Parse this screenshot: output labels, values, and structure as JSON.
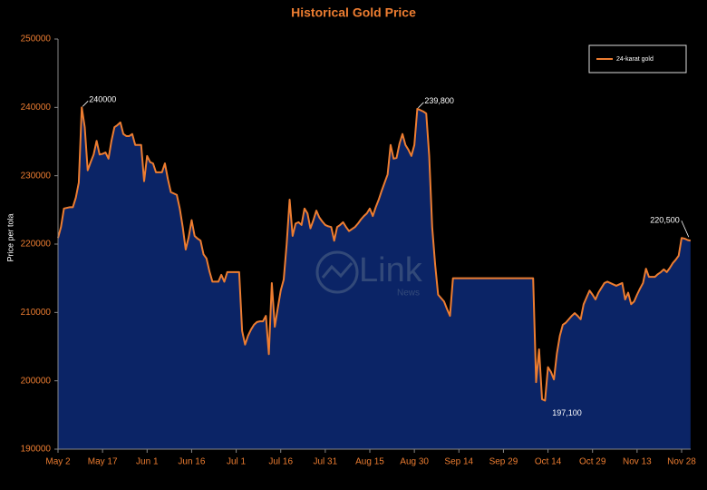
{
  "chart_data": {
    "type": "area",
    "title": "Historical Gold Price",
    "y_label": "Price per tola",
    "watermark": {
      "text": "Link",
      "subtext": "News"
    },
    "background": "#000000",
    "legend": "upper right",
    "categories": [
      "May 2",
      null,
      null,
      null,
      null,
      null,
      null,
      null,
      null,
      null,
      null,
      null,
      null,
      null,
      null,
      "May 17",
      null,
      null,
      null,
      null,
      null,
      null,
      null,
      null,
      null,
      null,
      null,
      null,
      null,
      null,
      "Jun 1",
      null,
      null,
      null,
      null,
      null,
      null,
      null,
      null,
      null,
      null,
      null,
      null,
      null,
      null,
      "Jun 16",
      null,
      null,
      null,
      null,
      null,
      null,
      null,
      null,
      null,
      null,
      null,
      null,
      null,
      null,
      "Jul 1",
      null,
      null,
      null,
      null,
      null,
      null,
      null,
      null,
      null,
      null,
      null,
      null,
      null,
      null,
      "Jul 16",
      null,
      null,
      null,
      null,
      null,
      null,
      null,
      null,
      null,
      null,
      null,
      null,
      null,
      null,
      "Jul 31",
      null,
      null,
      null,
      null,
      null,
      null,
      null,
      null,
      null,
      null,
      null,
      null,
      null,
      null,
      "Aug 15",
      null,
      null,
      null,
      null,
      null,
      null,
      null,
      null,
      null,
      null,
      null,
      null,
      null,
      null,
      "Aug 30",
      null,
      null,
      null,
      null,
      null,
      null,
      null,
      null,
      null,
      null,
      null,
      null,
      null,
      null,
      "Sep 14",
      null,
      null,
      null,
      null,
      null,
      null,
      null,
      null,
      null,
      null,
      null,
      null,
      null,
      null,
      "Sep 29",
      null,
      null,
      null,
      null,
      null,
      null,
      null,
      null,
      null,
      null,
      null,
      null,
      null,
      null,
      "Oct 14",
      null,
      null,
      null,
      null,
      null,
      null,
      null,
      null,
      null,
      null,
      null,
      null,
      null,
      null,
      "Oct 29",
      null,
      null,
      null,
      null,
      null,
      null,
      null,
      null,
      null,
      null,
      null,
      null,
      null,
      null,
      "Nov 13",
      null,
      null,
      null,
      null,
      null,
      null,
      null,
      null,
      null,
      null,
      null,
      null,
      null,
      null,
      "Nov 28",
      null,
      null,
      null
    ],
    "series": [
      {
        "name": "24-karat gold",
        "color": "#ed7d31",
        "fill": "#0b2466",
        "values": [
          220900,
          222500,
          225200,
          225300,
          225400,
          225400,
          226800,
          229000,
          240000,
          237100,
          230800,
          232000,
          233100,
          235100,
          233100,
          233200,
          233400,
          232500,
          235100,
          237100,
          237400,
          237800,
          236100,
          235800,
          235800,
          236100,
          234500,
          234500,
          234500,
          229200,
          232900,
          232000,
          231800,
          230500,
          230500,
          230500,
          231800,
          229500,
          227600,
          227400,
          227200,
          225200,
          222500,
          219200,
          221000,
          223500,
          221200,
          220800,
          220500,
          218500,
          217900,
          216000,
          214500,
          214500,
          214500,
          215500,
          214500,
          215900,
          215900,
          215900,
          215900,
          215900,
          207300,
          205300,
          206600,
          207500,
          208200,
          208600,
          208700,
          208700,
          209500,
          203900,
          214300,
          207900,
          210600,
          213200,
          214800,
          220000,
          226500,
          221200,
          223000,
          223200,
          222800,
          225200,
          224500,
          222300,
          223500,
          224900,
          223900,
          223300,
          222800,
          222600,
          222500,
          220500,
          222500,
          222800,
          223200,
          222500,
          221900,
          222200,
          222500,
          223000,
          223600,
          224100,
          224500,
          225200,
          224100,
          225400,
          226500,
          227800,
          229000,
          230200,
          234500,
          232500,
          232600,
          234700,
          236100,
          234500,
          233800,
          232900,
          234500,
          239800,
          239600,
          239400,
          239100,
          232900,
          222500,
          217000,
          212600,
          212100,
          211600,
          210500,
          209500,
          215000,
          215000,
          215000,
          215000,
          215000,
          215000,
          215000,
          215000,
          215000,
          215000,
          215000,
          215000,
          215000,
          215000,
          215000,
          215000,
          215000,
          215000,
          215000,
          215000,
          215000,
          215000,
          215000,
          215000,
          215000,
          215000,
          215000,
          215000,
          199800,
          204600,
          197300,
          197100,
          202000,
          201300,
          200200,
          204000,
          206600,
          208200,
          208500,
          209000,
          209500,
          209900,
          209500,
          209000,
          211200,
          212200,
          213200,
          212600,
          211900,
          212900,
          213600,
          214300,
          214500,
          214300,
          214100,
          213900,
          214100,
          214300,
          211900,
          212900,
          211200,
          211600,
          212600,
          213500,
          214300,
          216400,
          215200,
          215200,
          215200,
          215600,
          215900,
          216300,
          215900,
          216500,
          217200,
          217700,
          218300,
          220900,
          220800,
          220600,
          220500
        ],
        "value_labels": [
          null,
          null,
          null,
          null,
          null,
          null,
          null,
          null,
          "240000",
          null,
          null,
          null,
          null,
          null,
          null,
          null,
          null,
          null,
          null,
          null,
          null,
          null,
          null,
          null,
          null,
          null,
          null,
          null,
          null,
          null,
          null,
          null,
          null,
          null,
          null,
          null,
          null,
          null,
          null,
          null,
          null,
          null,
          null,
          null,
          null,
          null,
          null,
          null,
          null,
          null,
          null,
          null,
          null,
          null,
          null,
          null,
          null,
          null,
          null,
          null,
          null,
          null,
          null,
          null,
          null,
          null,
          null,
          null,
          null,
          null,
          null,
          null,
          null,
          null,
          null,
          null,
          null,
          null,
          null,
          null,
          null,
          null,
          null,
          null,
          null,
          null,
          null,
          null,
          null,
          null,
          null,
          null,
          null,
          null,
          null,
          null,
          null,
          null,
          null,
          null,
          null,
          null,
          null,
          null,
          null,
          null,
          null,
          null,
          null,
          null,
          null,
          null,
          null,
          null,
          null,
          null,
          null,
          null,
          null,
          null,
          null,
          "239,800",
          null,
          null,
          null,
          null,
          null,
          null,
          null,
          null,
          null,
          null,
          null,
          null,
          null,
          null,
          null,
          null,
          null,
          null,
          null,
          null,
          null,
          null,
          null,
          null,
          null,
          null,
          null,
          null,
          null,
          null,
          null,
          null,
          null,
          null,
          null,
          null,
          null,
          null,
          null,
          null,
          null,
          null,
          "197,100",
          null,
          null,
          null,
          null,
          null,
          null,
          null,
          null,
          null,
          null,
          null,
          null,
          null,
          null,
          null,
          null,
          null,
          null,
          null,
          null,
          null,
          null,
          null,
          null,
          null,
          null,
          null,
          null,
          null,
          null,
          null,
          null,
          null,
          null,
          null,
          null,
          null,
          null,
          null,
          null,
          null,
          null,
          null,
          null,
          null,
          null,
          null,
          null,
          "220,500"
        ]
      }
    ],
    "ylim": [
      190000,
      250000
    ],
    "yticks": [
      190000,
      200000,
      210000,
      220000,
      230000,
      240000,
      250000
    ]
  }
}
